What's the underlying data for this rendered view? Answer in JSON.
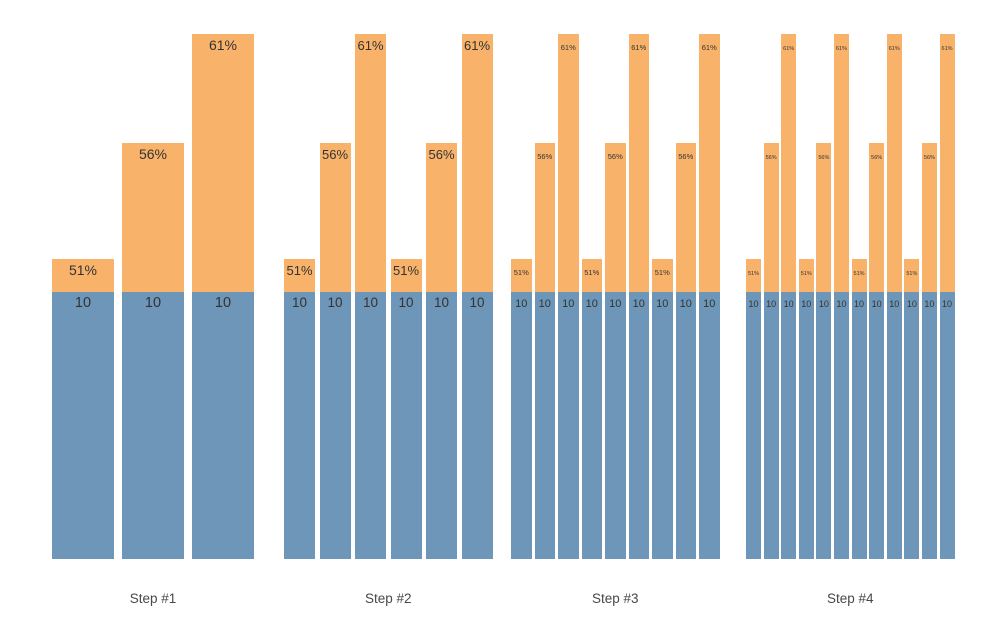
{
  "page": {
    "background": "#ffffff"
  },
  "chart_data": {
    "type": "bar",
    "subtype": "stacked-column-small-multiples",
    "title": "",
    "axes": {
      "visible": false
    },
    "grid": false,
    "legend": {
      "visible": false
    },
    "base_value": 10,
    "base_value_label": "10",
    "percent_levels": [
      "51%",
      "56%",
      "61%"
    ],
    "percent_values": [
      51,
      56,
      61
    ],
    "segment_colors": {
      "base": "#6D96B8",
      "top": "#F8B26A"
    },
    "label_color": "#333333",
    "step_label_color": "#484848",
    "groups": [
      {
        "label": "Step #1",
        "bars": [
          {
            "pct": "51%",
            "base": "10"
          },
          {
            "pct": "56%",
            "base": "10"
          },
          {
            "pct": "61%",
            "base": "10"
          }
        ]
      },
      {
        "label": "Step #2",
        "bars": [
          {
            "pct": "51%",
            "base": "10"
          },
          {
            "pct": "56%",
            "base": "10"
          },
          {
            "pct": "61%",
            "base": "10"
          },
          {
            "pct": "51%",
            "base": "10"
          },
          {
            "pct": "56%",
            "base": "10"
          },
          {
            "pct": "61%",
            "base": "10"
          }
        ]
      },
      {
        "label": "Step #3",
        "bars": [
          {
            "pct": "51%",
            "base": "10"
          },
          {
            "pct": "56%",
            "base": "10"
          },
          {
            "pct": "61%",
            "base": "10"
          },
          {
            "pct": "51%",
            "base": "10"
          },
          {
            "pct": "56%",
            "base": "10"
          },
          {
            "pct": "61%",
            "base": "10"
          },
          {
            "pct": "51%",
            "base": "10"
          },
          {
            "pct": "56%",
            "base": "10"
          },
          {
            "pct": "61%",
            "base": "10"
          }
        ]
      },
      {
        "label": "Step #4",
        "bars": [
          {
            "pct": "51%",
            "base": "10"
          },
          {
            "pct": "56%",
            "base": "10"
          },
          {
            "pct": "61%",
            "base": "10"
          },
          {
            "pct": "51%",
            "base": "10"
          },
          {
            "pct": "56%",
            "base": "10"
          },
          {
            "pct": "61%",
            "base": "10"
          },
          {
            "pct": "51%",
            "base": "10"
          },
          {
            "pct": "56%",
            "base": "10"
          },
          {
            "pct": "61%",
            "base": "10"
          },
          {
            "pct": "51%",
            "base": "10"
          },
          {
            "pct": "56%",
            "base": "10"
          },
          {
            "pct": "61%",
            "base": "10"
          }
        ]
      }
    ]
  }
}
